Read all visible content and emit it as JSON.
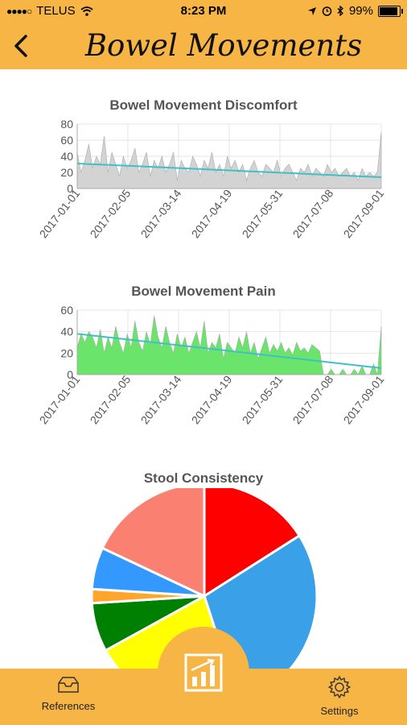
{
  "status": {
    "carrier": "TELUS",
    "time": "8:23 PM",
    "battery": "99%",
    "battery_level": 0.99
  },
  "nav": {
    "title": "Bowel Movements"
  },
  "charts": {
    "discomfort_title": "Bowel Movement Discomfort",
    "pain_title": "Bowel Movement Pain",
    "consistency_title": "Stool Consistency"
  },
  "tabs": {
    "references": "References",
    "settings": "Settings"
  },
  "colors": {
    "accent": "#f6b544",
    "discomfort_fill": "#d3d3d3",
    "pain_fill": "#6ae46a",
    "trend": "#3ec1c6"
  },
  "icons": [
    "wifi-icon",
    "location-icon",
    "alarm-icon",
    "bluetooth-icon",
    "chevron-left-icon",
    "tray-icon",
    "gear-icon",
    "chart-icon"
  ],
  "chart_data": [
    {
      "type": "area",
      "title": "Bowel Movement Discomfort",
      "x_ticks": [
        "2017-01-01",
        "2017-02-05",
        "2017-03-14",
        "2017-04-19",
        "2017-05-31",
        "2017-07-08",
        "2017-09-01"
      ],
      "ylim": [
        0,
        80
      ],
      "y_ticks": [
        0,
        20,
        40,
        60,
        80
      ],
      "grid": true,
      "series": [
        {
          "values": [
            45,
            20,
            35,
            55,
            25,
            40,
            30,
            65,
            20,
            45,
            30,
            15,
            40,
            25,
            35,
            50,
            20,
            30,
            45,
            15,
            35,
            25,
            40,
            20,
            30,
            45,
            10,
            35,
            25,
            20,
            40,
            30,
            15,
            35,
            25,
            45,
            20,
            30,
            15,
            40,
            25,
            35,
            20,
            30,
            10,
            25,
            35,
            20,
            15,
            30,
            25,
            20,
            35,
            15,
            25,
            30,
            20,
            10,
            25,
            20,
            30,
            15,
            25,
            20,
            15,
            30,
            20,
            25,
            15,
            20,
            25,
            15,
            20,
            10,
            25,
            15,
            20,
            15,
            20,
            70
          ]
        }
      ],
      "trend": [
        31,
        14
      ]
    },
    {
      "type": "area",
      "title": "Bowel Movement Pain",
      "x_ticks": [
        "2017-01-01",
        "2017-02-05",
        "2017-03-14",
        "2017-04-19",
        "2017-05-31",
        "2017-07-08",
        "2017-09-01"
      ],
      "ylim": [
        0,
        60
      ],
      "y_ticks": [
        0,
        20,
        40,
        60
      ],
      "grid": true,
      "series": [
        {
          "values": [
            25,
            38,
            30,
            40,
            35,
            25,
            42,
            20,
            35,
            25,
            45,
            30,
            20,
            38,
            25,
            50,
            30,
            22,
            40,
            28,
            55,
            35,
            25,
            45,
            30,
            20,
            38,
            25,
            35,
            20,
            30,
            40,
            25,
            50,
            20,
            30,
            25,
            38,
            15,
            30,
            25,
            20,
            35,
            25,
            40,
            20,
            30,
            15,
            25,
            35,
            20,
            28,
            22,
            30,
            20,
            25,
            18,
            30,
            22,
            25,
            20,
            28,
            25,
            22,
            0,
            0,
            5,
            0,
            0,
            5,
            0,
            0,
            5,
            0,
            8,
            0,
            0,
            10,
            0,
            45
          ]
        }
      ],
      "trend": [
        38,
        6
      ]
    },
    {
      "type": "pie",
      "title": "Stool Consistency",
      "slices": [
        {
          "value": 16,
          "color": "#ff0000"
        },
        {
          "value": 29,
          "color": "#3aa0e8"
        },
        {
          "value": 22,
          "color": "#ffff00"
        },
        {
          "value": 7,
          "color": "#008000"
        },
        {
          "value": 2,
          "color": "#ffa52a"
        },
        {
          "value": 6,
          "color": "#3399ff"
        },
        {
          "value": 18,
          "color": "#fa8072"
        }
      ]
    }
  ]
}
